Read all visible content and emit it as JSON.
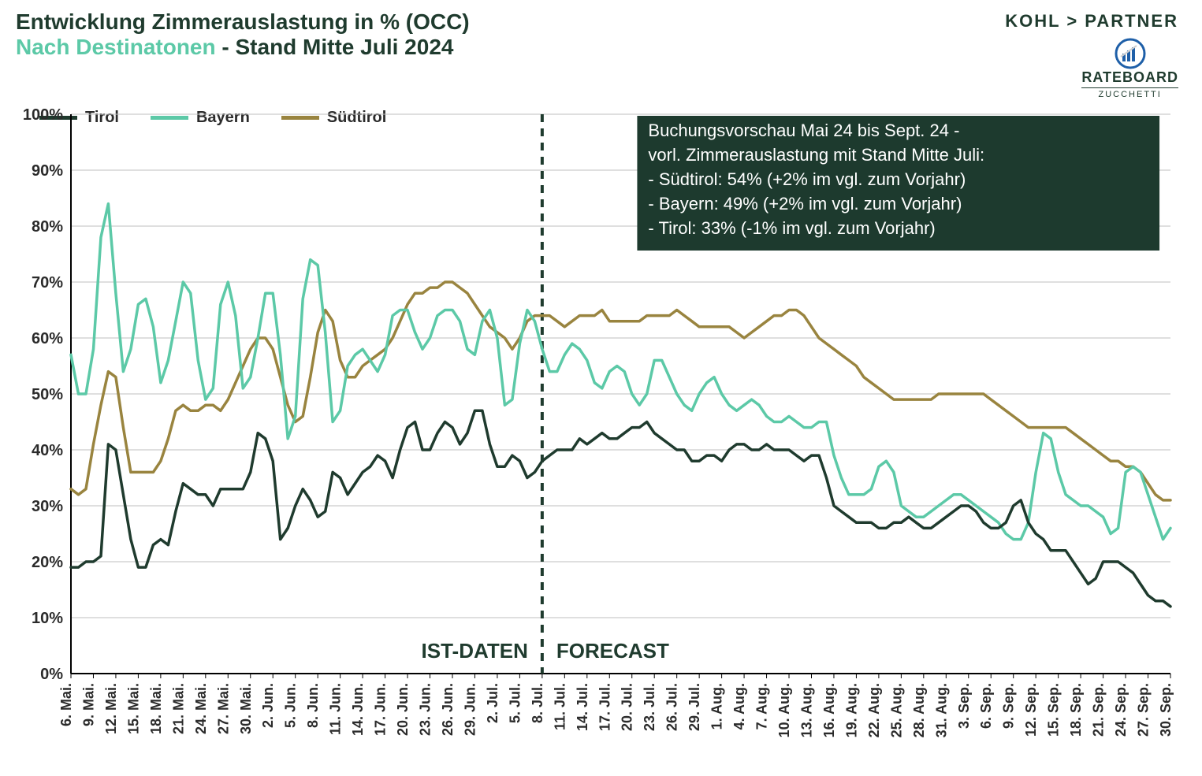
{
  "titles": {
    "line1": "Entwicklung Zimmerauslastung in % (OCC)",
    "line2_teal": "Nach Destinatonen",
    "line2_dark": " - Stand Mitte Juli 2024"
  },
  "brand": {
    "top": "KOHL > PARTNER",
    "mid": "RATEBOARD",
    "sub": "ZUCCHETTI"
  },
  "legend": [
    {
      "name": "Tirol",
      "color": "#1f3b2e"
    },
    {
      "name": "Bayern",
      "color": "#5cc9a7"
    },
    {
      "name": "Südtirol",
      "color": "#99843f"
    }
  ],
  "chart": {
    "type": "line",
    "background_color": "#ffffff",
    "grid_color": "#bfbfbf",
    "axis_color": "#000000",
    "line_width": 3.5,
    "ylim": [
      0,
      100
    ],
    "ytick_step": 10,
    "ytick_suffix": "%",
    "ytick_fontsize": 20,
    "xtick_fontsize": 18,
    "x_labels": [
      "6. Mai.",
      "9. Mai.",
      "12. Mai.",
      "15. Mai.",
      "18. Mai.",
      "21. Mai.",
      "24. Mai.",
      "27. Mai.",
      "30. Mai.",
      "2. Jun.",
      "5. Jun.",
      "8. Jun.",
      "11. Jun.",
      "14. Jun.",
      "17. Jun.",
      "20. Jun.",
      "23. Jun.",
      "26. Jun.",
      "29. Jun.",
      "2. Jul.",
      "5. Jul.",
      "8. Jul.",
      "11. Jul.",
      "14. Jul.",
      "17. Jul.",
      "20. Jul.",
      "23. Jul.",
      "26. Jul.",
      "29. Jul.",
      "1. Aug.",
      "4. Aug.",
      "7. Aug.",
      "10. Aug.",
      "13. Aug.",
      "16. Aug.",
      "19. Aug.",
      "22. Aug.",
      "25. Aug.",
      "28. Aug.",
      "31. Aug.",
      "3. Sep.",
      "6. Sep.",
      "9. Sep.",
      "12. Sep.",
      "15. Sep.",
      "18. Sep.",
      "21. Sep.",
      "24. Sep.",
      "27. Sep.",
      "30. Sep."
    ],
    "n_points": 148,
    "divider_index": 63,
    "section_labels": {
      "left": "IST-DATEN",
      "right": "FORECAST"
    },
    "series": {
      "Tirol": {
        "color": "#1f3b2e",
        "values": [
          19,
          19,
          20,
          20,
          21,
          41,
          40,
          32,
          24,
          19,
          19,
          23,
          24,
          23,
          29,
          34,
          33,
          32,
          32,
          30,
          33,
          33,
          33,
          33,
          36,
          43,
          42,
          38,
          24,
          26,
          30,
          33,
          31,
          28,
          29,
          36,
          35,
          32,
          34,
          36,
          37,
          39,
          38,
          35,
          40,
          44,
          45,
          40,
          40,
          43,
          45,
          44,
          41,
          43,
          47,
          47,
          41,
          37,
          37,
          39,
          38,
          35,
          36,
          38,
          39,
          40,
          40,
          40,
          42,
          41,
          42,
          43,
          42,
          42,
          43,
          44,
          44,
          45,
          43,
          42,
          41,
          40,
          40,
          38,
          38,
          39,
          39,
          38,
          40,
          41,
          41,
          40,
          40,
          41,
          40,
          40,
          40,
          39,
          38,
          39,
          39,
          35,
          30,
          29,
          28,
          27,
          27,
          27,
          26,
          26,
          27,
          27,
          28,
          27,
          26,
          26,
          27,
          28,
          29,
          30,
          30,
          29,
          27,
          26,
          26,
          27,
          30,
          31,
          27,
          25,
          24,
          22,
          22,
          22,
          20,
          18,
          16,
          17,
          20,
          20,
          20,
          19,
          18,
          16,
          14,
          13,
          13,
          12
        ]
      },
      "Bayern": {
        "color": "#5cc9a7",
        "values": [
          57,
          50,
          50,
          58,
          78,
          84,
          68,
          54,
          58,
          66,
          67,
          62,
          52,
          56,
          63,
          70,
          68,
          56,
          49,
          51,
          66,
          70,
          64,
          51,
          53,
          60,
          68,
          68,
          57,
          42,
          46,
          67,
          74,
          73,
          61,
          45,
          47,
          55,
          57,
          58,
          56,
          54,
          57,
          64,
          65,
          65,
          61,
          58,
          60,
          64,
          65,
          65,
          63,
          58,
          57,
          63,
          65,
          60,
          48,
          49,
          59,
          65,
          63,
          58,
          54,
          54,
          57,
          59,
          58,
          56,
          52,
          51,
          54,
          55,
          54,
          50,
          48,
          50,
          56,
          56,
          53,
          50,
          48,
          47,
          50,
          52,
          53,
          50,
          48,
          47,
          48,
          49,
          48,
          46,
          45,
          45,
          46,
          45,
          44,
          44,
          45,
          45,
          39,
          35,
          32,
          32,
          32,
          33,
          37,
          38,
          36,
          30,
          29,
          28,
          28,
          29,
          30,
          31,
          32,
          32,
          31,
          30,
          29,
          28,
          27,
          25,
          24,
          24,
          27,
          36,
          43,
          42,
          36,
          32,
          31,
          30,
          30,
          29,
          28,
          25,
          26,
          36,
          37,
          36,
          32,
          28,
          24,
          26
        ]
      },
      "Südtirol": {
        "color": "#99843f",
        "values": [
          33,
          32,
          33,
          41,
          48,
          54,
          53,
          44,
          36,
          36,
          36,
          36,
          38,
          42,
          47,
          48,
          47,
          47,
          48,
          48,
          47,
          49,
          52,
          55,
          58,
          60,
          60,
          58,
          53,
          48,
          45,
          46,
          53,
          61,
          65,
          63,
          56,
          53,
          53,
          55,
          56,
          57,
          58,
          60,
          63,
          66,
          68,
          68,
          69,
          69,
          70,
          70,
          69,
          68,
          66,
          64,
          62,
          61,
          60,
          58,
          60,
          63,
          64,
          64,
          64,
          63,
          62,
          63,
          64,
          64,
          64,
          65,
          63,
          63,
          63,
          63,
          63,
          64,
          64,
          64,
          64,
          65,
          64,
          63,
          62,
          62,
          62,
          62,
          62,
          61,
          60,
          61,
          62,
          63,
          64,
          64,
          65,
          65,
          64,
          62,
          60,
          59,
          58,
          57,
          56,
          55,
          53,
          52,
          51,
          50,
          49,
          49,
          49,
          49,
          49,
          49,
          50,
          50,
          50,
          50,
          50,
          50,
          50,
          49,
          48,
          47,
          46,
          45,
          44,
          44,
          44,
          44,
          44,
          44,
          43,
          42,
          41,
          40,
          39,
          38,
          38,
          37,
          37,
          36,
          34,
          32,
          31,
          31
        ]
      }
    },
    "annotation": {
      "bg": "#1d3a2e",
      "text_color": "#ffffff",
      "fontsize": 22,
      "lines": [
        "Buchungsvorschau Mai 24 bis Sept. 24 -",
        "vorl. Zimmerauslastung mit Stand Mitte Juli:",
        "- Südtirol:  54% (+2% im vgl. zum Vorjahr)",
        "- Bayern:  49% (+2% im vgl. zum Vorjahr)",
        "- Tirol:  33% (-1% im vgl. zum Vorjahr)"
      ]
    }
  }
}
